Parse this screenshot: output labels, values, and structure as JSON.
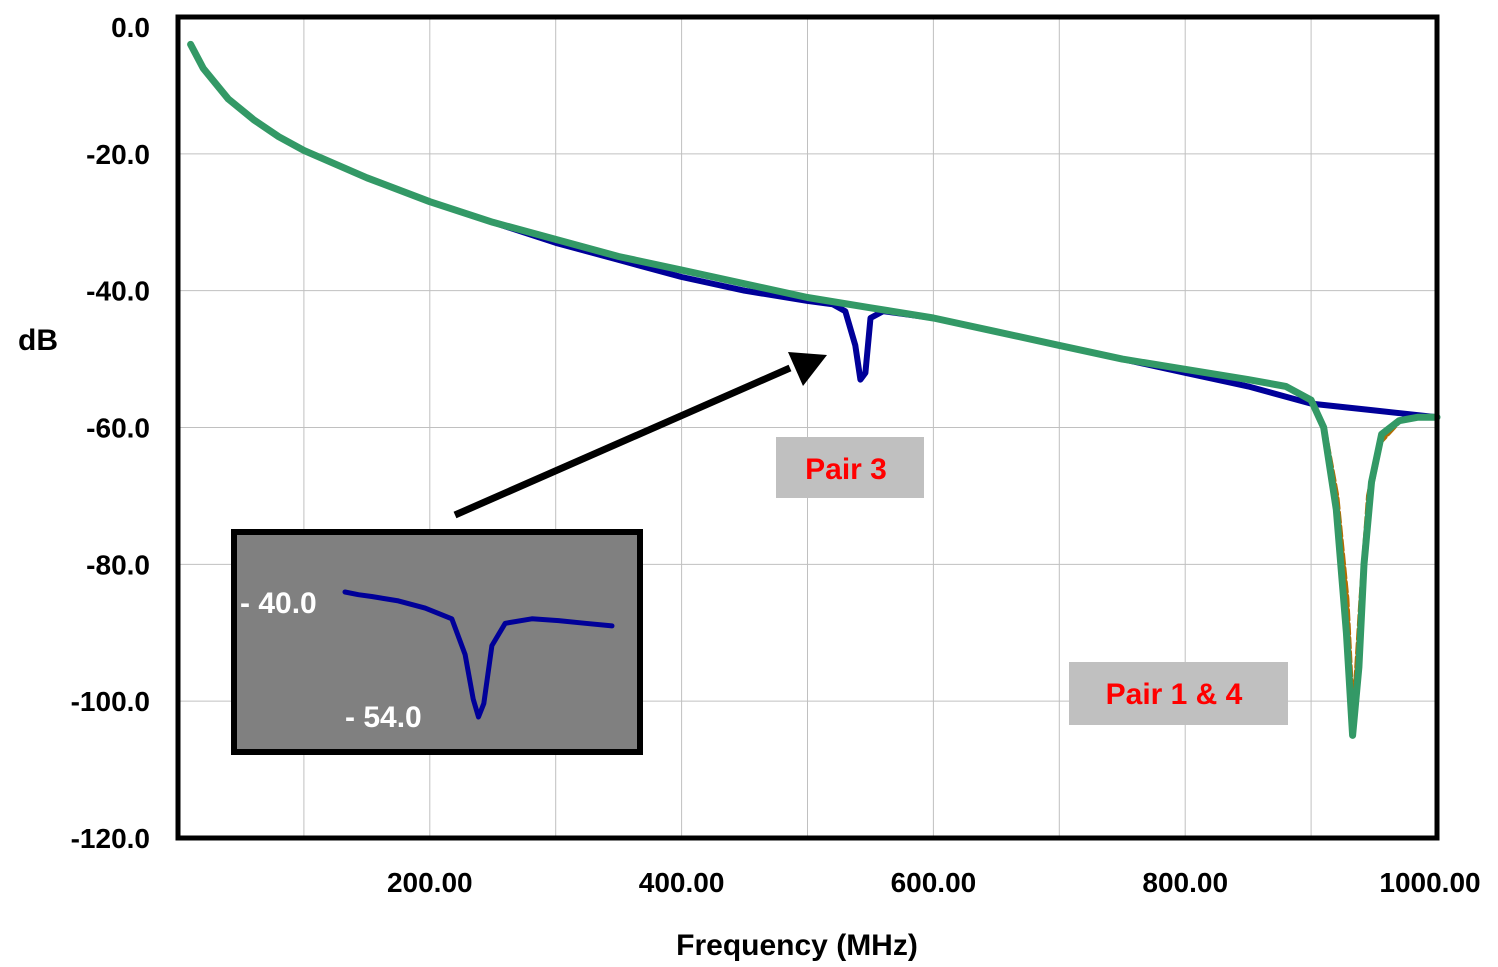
{
  "chart_data": {
    "type": "line",
    "xlabel": "Frequency (MHz)",
    "ylabel": "dB",
    "xlim": [
      0,
      1000
    ],
    "ylim": [
      -120,
      0
    ],
    "x_ticks": [
      200,
      400,
      600,
      800,
      1000
    ],
    "x_tick_labels": [
      "200.00",
      "400.00",
      "600.00",
      "800.00",
      "1000.00"
    ],
    "y_ticks": [
      0,
      -20,
      -40,
      -60,
      -80,
      -100,
      -120
    ],
    "y_tick_labels": [
      "0.0",
      "-20.0",
      "-40.0",
      "-60.0",
      "-80.0",
      "-100.0",
      "-120.0"
    ],
    "x_grid_step": 100,
    "grid": true,
    "series": [
      {
        "color": "#000099",
        "x": [
          10,
          20,
          40,
          60,
          80,
          100,
          150,
          200,
          250,
          300,
          350,
          400,
          450,
          500,
          520,
          530,
          538,
          542,
          546,
          550,
          560,
          600,
          650,
          700,
          750,
          800,
          850,
          900,
          950,
          1000
        ],
        "y": [
          -4,
          -7.5,
          -12,
          -15,
          -17.5,
          -19.5,
          -23.5,
          -27,
          -30,
          -33,
          -35.5,
          -38,
          -40,
          -41.5,
          -42,
          -43,
          -48,
          -53,
          -52,
          -44,
          -43,
          -44,
          -46,
          -48,
          -50,
          -52,
          -54,
          -56.5,
          -57.5,
          -58.5
        ]
      },
      {
        "color": "#b36b00",
        "x": [
          10,
          20,
          40,
          60,
          80,
          100,
          150,
          200,
          250,
          300,
          350,
          400,
          450,
          500,
          550,
          600,
          650,
          700,
          750,
          800,
          850,
          880,
          900,
          910,
          920,
          928,
          932,
          936,
          940,
          946,
          955,
          970,
          985,
          1000
        ],
        "y": [
          -4,
          -7.5,
          -12,
          -15,
          -17.5,
          -19.5,
          -23.5,
          -27,
          -30,
          -32.5,
          -35,
          -37,
          -39,
          -41,
          -42.5,
          -44,
          -46,
          -48,
          -50,
          -51.5,
          -53,
          -54,
          -56,
          -60,
          -70,
          -85,
          -100,
          -97,
          -85,
          -70,
          -62,
          -59,
          -58.5,
          -58.5
        ]
      },
      {
        "color": "#339966",
        "x": [
          10,
          20,
          40,
          60,
          80,
          100,
          150,
          200,
          250,
          300,
          350,
          400,
          450,
          500,
          550,
          600,
          650,
          700,
          750,
          800,
          850,
          880,
          900,
          910,
          920,
          928,
          933,
          938,
          942,
          948,
          956,
          970,
          985,
          1000
        ],
        "y": [
          -4,
          -7.5,
          -12,
          -15,
          -17.5,
          -19.5,
          -23.5,
          -27,
          -30,
          -32.5,
          -35,
          -37,
          -39,
          -41,
          -42.5,
          -44,
          -46,
          -48,
          -50,
          -51.5,
          -53,
          -54,
          -56,
          -60,
          -72,
          -90,
          -105,
          -95,
          -80,
          -68,
          -61,
          -59,
          -58.5,
          -58.5
        ]
      }
    ],
    "annotations": [
      {
        "text": "Pair 3",
        "color": "#ff0000"
      },
      {
        "text": "Pair 1 & 4",
        "color": "#ff0000"
      }
    ],
    "inset": {
      "labels": [
        "- 40.0",
        "- 54.0"
      ],
      "x": [
        0,
        5,
        10,
        20,
        30,
        40,
        45,
        48,
        50,
        52,
        55,
        60,
        70,
        80,
        90,
        100
      ],
      "y": [
        -40,
        -40.3,
        -40.5,
        -41,
        -41.8,
        -43,
        -47,
        -52,
        -54,
        -52.5,
        -46,
        -43.5,
        -43,
        -43.2,
        -43.5,
        -43.8
      ]
    },
    "colors": {
      "tag_background": "#c0c0c0",
      "inset_background": "#808080",
      "arrow": "#000000",
      "grid": "#c0c0c0"
    }
  }
}
